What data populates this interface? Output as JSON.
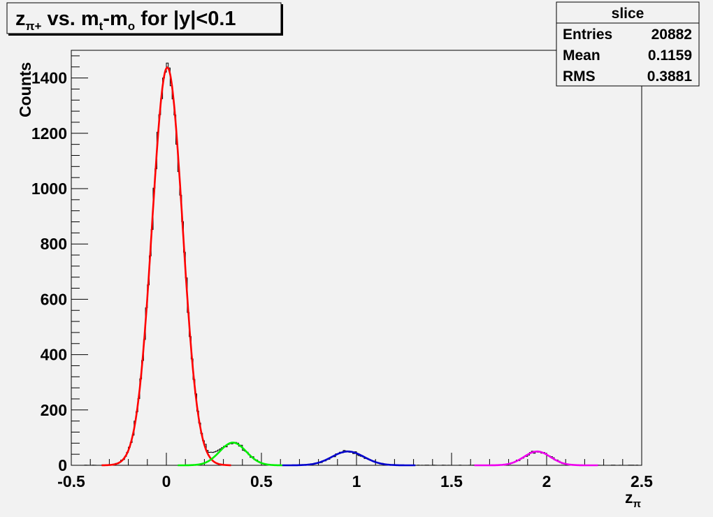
{
  "chart_data": {
    "type": "histogram",
    "title": {
      "z": "z",
      "z_sub": "π+",
      "vs": " vs. m",
      "mt_sub": "t",
      "dash": "-m",
      "mo_sub": "o",
      "rest": " for |y|<0.1"
    },
    "xlabel": {
      "base": "z",
      "sub": "π"
    },
    "ylabel": "Counts",
    "xlim": [
      -0.5,
      2.5
    ],
    "ylim": [
      0,
      1500
    ],
    "x_ticks": [
      {
        "v": -0.5,
        "label": "-0.5"
      },
      {
        "v": 0,
        "label": "0"
      },
      {
        "v": 0.5,
        "label": "0.5"
      },
      {
        "v": 1,
        "label": "1"
      },
      {
        "v": 1.5,
        "label": "1.5"
      },
      {
        "v": 2,
        "label": "2"
      },
      {
        "v": 2.5,
        "label": "2.5"
      }
    ],
    "y_ticks": [
      {
        "v": 0,
        "label": "0"
      },
      {
        "v": 200,
        "label": "200"
      },
      {
        "v": 400,
        "label": "400"
      },
      {
        "v": 600,
        "label": "600"
      },
      {
        "v": 800,
        "label": "800"
      },
      {
        "v": 1000,
        "label": "1000"
      },
      {
        "v": 1200,
        "label": "1200"
      },
      {
        "v": 1400,
        "label": "1400"
      }
    ],
    "stats_box": {
      "title": "slice",
      "rows": [
        {
          "label": "Entries",
          "value": "20882"
        },
        {
          "label": "Mean",
          "value": "0.1159"
        },
        {
          "label": "RMS",
          "value": "0.3881"
        }
      ]
    },
    "fits": [
      {
        "color": "#ff0000",
        "amplitude": 1438,
        "mean": 0.005,
        "sigma": 0.08,
        "range": [
          -0.34,
          0.34
        ]
      },
      {
        "color": "#00ee00",
        "amplitude": 82,
        "mean": 0.35,
        "sigma": 0.07,
        "range": [
          0.06,
          0.61
        ]
      },
      {
        "color": "#0000cc",
        "amplitude": 50,
        "mean": 0.955,
        "sigma": 0.085,
        "range": [
          0.61,
          1.31
        ]
      },
      {
        "color": "#ee00ee",
        "amplitude": 50,
        "mean": 1.95,
        "sigma": 0.07,
        "range": [
          1.62,
          2.27
        ]
      }
    ]
  }
}
